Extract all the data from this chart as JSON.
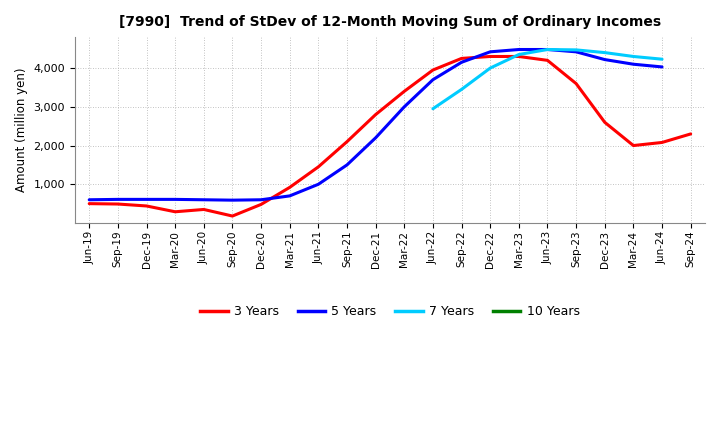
{
  "title": "[7990]  Trend of StDev of 12-Month Moving Sum of Ordinary Incomes",
  "ylabel": "Amount (million yen)",
  "background_color": "#ffffff",
  "grid_color": "#aaaaaa",
  "ylim": [
    0,
    4800
  ],
  "yticks": [
    1000,
    2000,
    3000,
    4000
  ],
  "x_labels": [
    "Jun-19",
    "Sep-19",
    "Dec-19",
    "Mar-20",
    "Jun-20",
    "Sep-20",
    "Dec-20",
    "Mar-21",
    "Jun-21",
    "Sep-21",
    "Dec-21",
    "Mar-22",
    "Jun-22",
    "Sep-22",
    "Dec-22",
    "Mar-23",
    "Jun-23",
    "Sep-23",
    "Dec-23",
    "Mar-24",
    "Jun-24",
    "Sep-24"
  ],
  "series": [
    {
      "label": "3 Years",
      "color": "#ff0000",
      "data": [
        500,
        490,
        440,
        290,
        350,
        180,
        480,
        920,
        1450,
        2100,
        2800,
        3400,
        3950,
        4250,
        4300,
        4300,
        4200,
        3600,
        2600,
        2000,
        2080,
        2300
      ]
    },
    {
      "label": "5 Years",
      "color": "#0000ff",
      "data": [
        600,
        610,
        610,
        610,
        600,
        590,
        600,
        700,
        1000,
        1500,
        2200,
        3000,
        3700,
        4150,
        4420,
        4480,
        4480,
        4420,
        4220,
        4100,
        4030,
        null
      ]
    },
    {
      "label": "7 Years",
      "color": "#00ccff",
      "data": [
        null,
        null,
        null,
        null,
        null,
        null,
        null,
        null,
        null,
        null,
        null,
        null,
        2950,
        3450,
        4000,
        4350,
        4480,
        4470,
        4400,
        4300,
        4230,
        null
      ]
    },
    {
      "label": "10 Years",
      "color": "#008000",
      "data": [
        null,
        null,
        null,
        null,
        null,
        null,
        null,
        null,
        null,
        null,
        null,
        null,
        null,
        null,
        null,
        null,
        null,
        null,
        null,
        null,
        null,
        null
      ]
    }
  ],
  "legend_labels": [
    "3 Years",
    "5 Years",
    "7 Years",
    "10 Years"
  ],
  "legend_colors": [
    "#ff0000",
    "#0000ff",
    "#00ccff",
    "#008000"
  ]
}
